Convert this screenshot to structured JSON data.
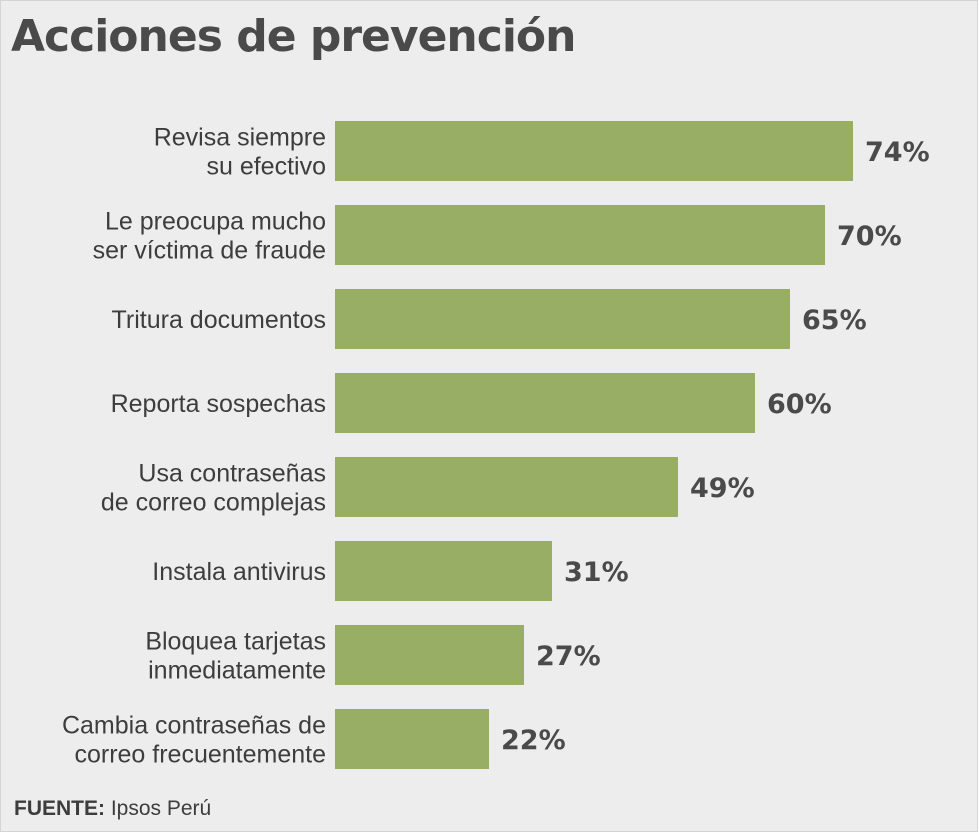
{
  "title": "Acciones de prevención",
  "source": {
    "label": "FUENTE:",
    "text": "Ipsos Perú"
  },
  "colors": {
    "bar": "#97ae64",
    "background": "#ededed"
  },
  "chart_data": {
    "type": "bar",
    "orientation": "horizontal",
    "title": "Acciones de prevención",
    "xlabel": "",
    "ylabel": "",
    "unit": "%",
    "xlim": [
      0,
      74
    ],
    "categories": [
      [
        "Revisa siempre",
        "su efectivo"
      ],
      [
        "Le preocupa mucho",
        "ser víctima de fraude"
      ],
      [
        "Tritura documentos"
      ],
      [
        "Reporta sospechas"
      ],
      [
        "Usa contraseñas",
        "de correo complejas"
      ],
      [
        "Instala antivirus"
      ],
      [
        "Bloquea tarjetas",
        "inmediatamente"
      ],
      [
        "Cambia contraseñas de",
        "correo frecuentemente"
      ]
    ],
    "values": [
      74,
      70,
      65,
      60,
      49,
      31,
      27,
      22
    ],
    "value_labels": [
      "74%",
      "70%",
      "65%",
      "60%",
      "49%",
      "31%",
      "27%",
      "22%"
    ]
  }
}
